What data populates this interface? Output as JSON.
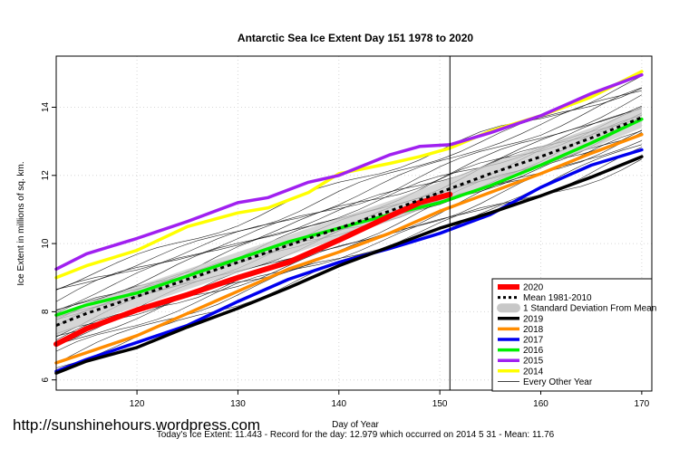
{
  "chart_data": {
    "type": "line",
    "title": "Antarctic Sea Ice Extent Day 151 1978 to 2020",
    "xlabel": "Day of Year",
    "ylabel": "Ice Extent in millions of sq. km.",
    "xlim": [
      112,
      171
    ],
    "ylim": [
      5.7,
      15.5
    ],
    "x_ticks": [
      120,
      130,
      140,
      150,
      160,
      170
    ],
    "y_ticks": [
      6,
      8,
      10,
      12,
      14
    ],
    "marker_day": 151,
    "grid": true,
    "legend_position": "bottom-right",
    "series": [
      {
        "name": "2014",
        "color": "#ffff00",
        "width": 3.5,
        "points": [
          [
            112,
            9.0
          ],
          [
            115,
            9.35
          ],
          [
            120,
            9.8
          ],
          [
            125,
            10.5
          ],
          [
            130,
            10.9
          ],
          [
            133,
            11.05
          ],
          [
            137,
            11.5
          ],
          [
            140,
            12.05
          ],
          [
            145,
            12.35
          ],
          [
            148,
            12.55
          ],
          [
            151,
            12.8
          ],
          [
            155,
            13.3
          ],
          [
            160,
            13.75
          ],
          [
            165,
            14.3
          ],
          [
            170,
            15.05
          ]
        ]
      },
      {
        "name": "2015",
        "color": "#a020f0",
        "width": 3.5,
        "points": [
          [
            112,
            9.25
          ],
          [
            115,
            9.7
          ],
          [
            120,
            10.15
          ],
          [
            125,
            10.65
          ],
          [
            130,
            11.2
          ],
          [
            133,
            11.35
          ],
          [
            137,
            11.8
          ],
          [
            140,
            12.0
          ],
          [
            145,
            12.6
          ],
          [
            148,
            12.85
          ],
          [
            151,
            12.9
          ],
          [
            155,
            13.25
          ],
          [
            160,
            13.75
          ],
          [
            165,
            14.4
          ],
          [
            170,
            14.95
          ]
        ]
      },
      {
        "name": "2016",
        "color": "#00ee00",
        "width": 3.5,
        "points": [
          [
            112,
            7.9
          ],
          [
            115,
            8.2
          ],
          [
            120,
            8.55
          ],
          [
            125,
            9.05
          ],
          [
            130,
            9.55
          ],
          [
            135,
            10.05
          ],
          [
            140,
            10.45
          ],
          [
            145,
            10.85
          ],
          [
            150,
            11.2
          ],
          [
            155,
            11.7
          ],
          [
            160,
            12.3
          ],
          [
            165,
            12.95
          ],
          [
            170,
            13.65
          ]
        ]
      },
      {
        "name": "2017",
        "color": "#0000ee",
        "width": 3.5,
        "points": [
          [
            112,
            6.25
          ],
          [
            115,
            6.6
          ],
          [
            120,
            7.1
          ],
          [
            125,
            7.6
          ],
          [
            130,
            8.3
          ],
          [
            135,
            8.95
          ],
          [
            140,
            9.45
          ],
          [
            145,
            9.85
          ],
          [
            150,
            10.3
          ],
          [
            155,
            10.85
          ],
          [
            160,
            11.65
          ],
          [
            165,
            12.3
          ],
          [
            170,
            12.75
          ]
        ]
      },
      {
        "name": "2018",
        "color": "#ff8c00",
        "width": 3.5,
        "points": [
          [
            112,
            6.5
          ],
          [
            115,
            6.8
          ],
          [
            120,
            7.3
          ],
          [
            125,
            7.95
          ],
          [
            130,
            8.6
          ],
          [
            135,
            9.25
          ],
          [
            140,
            9.75
          ],
          [
            145,
            10.3
          ],
          [
            150,
            10.95
          ],
          [
            155,
            11.5
          ],
          [
            160,
            12.05
          ],
          [
            165,
            12.65
          ],
          [
            170,
            13.2
          ]
        ]
      },
      {
        "name": "2019",
        "color": "#000000",
        "width": 3.5,
        "points": [
          [
            112,
            6.2
          ],
          [
            115,
            6.55
          ],
          [
            120,
            6.95
          ],
          [
            125,
            7.55
          ],
          [
            130,
            8.1
          ],
          [
            135,
            8.7
          ],
          [
            140,
            9.35
          ],
          [
            145,
            9.9
          ],
          [
            150,
            10.45
          ],
          [
            155,
            10.9
          ],
          [
            160,
            11.4
          ],
          [
            165,
            11.95
          ],
          [
            170,
            12.55
          ]
        ]
      },
      {
        "name": "2020",
        "color": "#ff0000",
        "width": 6,
        "points": [
          [
            112,
            7.05
          ],
          [
            115,
            7.5
          ],
          [
            120,
            8.05
          ],
          [
            125,
            8.5
          ],
          [
            130,
            9.0
          ],
          [
            135,
            9.45
          ],
          [
            140,
            10.1
          ],
          [
            145,
            10.8
          ],
          [
            148,
            11.2
          ],
          [
            151,
            11.443
          ]
        ]
      }
    ],
    "mean": {
      "name": "Mean 1981-2010",
      "color": "#000000",
      "points": [
        [
          112,
          7.6
        ],
        [
          115,
          7.95
        ],
        [
          120,
          8.45
        ],
        [
          125,
          8.95
        ],
        [
          130,
          9.45
        ],
        [
          135,
          9.95
        ],
        [
          140,
          10.45
        ],
        [
          145,
          10.95
        ],
        [
          150,
          11.5
        ],
        [
          155,
          12.05
        ],
        [
          160,
          12.55
        ],
        [
          165,
          13.1
        ],
        [
          170,
          13.7
        ]
      ]
    },
    "std_band": {
      "name": "1 Standard Deviation From Mean",
      "color": "#c8c8c8",
      "half_width": 0.3
    },
    "other_years": {
      "name": "Every Other Year",
      "color": "#000000"
    }
  },
  "footer": {
    "watermark": "http://sunshinehours.wordpress.com",
    "summary": "Today's Ice Extent: 11.443  - Record for the day: 12.979 which occurred on 2014 5 31  - Mean: 11.76"
  }
}
